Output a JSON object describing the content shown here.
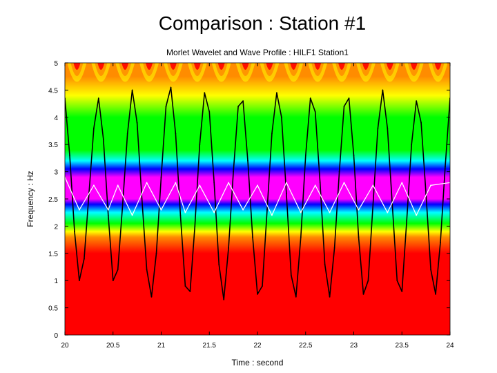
{
  "slide": {
    "title": "Comparison : Station #1"
  },
  "chart_data": {
    "type": "heatmap",
    "title": "Morlet Wavelet and Wave Profile : HILF1 Station1",
    "xlabel": "Time : second",
    "ylabel": "Frequency : Hz",
    "xlim": [
      20,
      24
    ],
    "ylim": [
      0,
      5
    ],
    "xticks": [
      "20",
      "20.5",
      "21",
      "21.5",
      "22",
      "22.5",
      "23",
      "23.5",
      "24"
    ],
    "yticks": [
      "0",
      "0.5",
      "1",
      "1.5",
      "2",
      "2.5",
      "3",
      "3.5",
      "4",
      "4.5",
      "5"
    ],
    "dominant_frequency_hz": 2.5,
    "colormap": [
      "#ff0000",
      "#ff8c00",
      "#ffff00",
      "#00ff00",
      "#00ffff",
      "#0000ff",
      "#ff00ff"
    ],
    "series": [
      {
        "type": "line",
        "color": "#000000",
        "x": [
          20.0,
          20.05,
          20.1,
          20.15,
          20.2,
          20.25,
          20.3,
          20.35,
          20.4,
          20.45,
          20.5,
          20.55,
          20.6,
          20.65,
          20.7,
          20.75,
          20.8,
          20.85,
          20.9,
          20.95,
          21.0,
          21.05,
          21.1,
          21.15,
          21.2,
          21.25,
          21.3,
          21.35,
          21.4,
          21.45,
          21.5,
          21.55,
          21.6,
          21.65,
          21.7,
          21.75,
          21.8,
          21.85,
          21.9,
          21.95,
          22.0,
          22.05,
          22.1,
          22.15,
          22.2,
          22.25,
          22.3,
          22.35,
          22.4,
          22.45,
          22.5,
          22.55,
          22.6,
          22.65,
          22.7,
          22.75,
          22.8,
          22.85,
          22.9,
          22.95,
          23.0,
          23.05,
          23.1,
          23.15,
          23.2,
          23.25,
          23.3,
          23.35,
          23.4,
          23.45,
          23.5,
          23.55,
          23.6,
          23.65,
          23.7,
          23.75,
          23.8,
          23.85,
          23.9,
          23.95,
          24.0
        ],
        "y": [
          4.35,
          3.3,
          1.9,
          1.0,
          1.4,
          2.6,
          3.8,
          4.35,
          3.6,
          2.2,
          1.0,
          1.2,
          2.4,
          3.7,
          4.5,
          3.9,
          2.5,
          1.2,
          0.7,
          1.5,
          2.9,
          4.2,
          4.55,
          3.7,
          2.2,
          0.9,
          0.8,
          2.0,
          3.5,
          4.45,
          4.1,
          2.8,
          1.3,
          0.65,
          1.6,
          3.0,
          4.2,
          4.3,
          3.2,
          1.8,
          0.75,
          0.9,
          2.3,
          3.7,
          4.45,
          4.0,
          2.6,
          1.1,
          0.7,
          1.8,
          3.3,
          4.35,
          4.1,
          2.8,
          1.3,
          0.7,
          1.6,
          3.0,
          4.2,
          4.35,
          3.3,
          1.8,
          0.75,
          1.0,
          2.4,
          3.8,
          4.5,
          3.8,
          2.4,
          1.0,
          0.8,
          2.1,
          3.5,
          4.3,
          3.9,
          2.6,
          1.2,
          0.75,
          1.7,
          3.1,
          4.35
        ]
      },
      {
        "type": "line",
        "color": "#ffffff",
        "x": [
          20.0,
          20.15,
          20.3,
          20.45,
          20.55,
          20.7,
          20.85,
          21.0,
          21.15,
          21.25,
          21.4,
          21.55,
          21.7,
          21.85,
          22.0,
          22.15,
          22.3,
          22.45,
          22.6,
          22.75,
          22.9,
          23.05,
          23.2,
          23.35,
          23.5,
          23.65,
          23.8,
          24.0
        ],
        "y": [
          2.9,
          2.3,
          2.75,
          2.3,
          2.75,
          2.2,
          2.8,
          2.3,
          2.8,
          2.25,
          2.75,
          2.25,
          2.8,
          2.3,
          2.75,
          2.2,
          2.8,
          2.25,
          2.75,
          2.25,
          2.8,
          2.3,
          2.75,
          2.25,
          2.8,
          2.2,
          2.75,
          2.8
        ]
      }
    ]
  }
}
